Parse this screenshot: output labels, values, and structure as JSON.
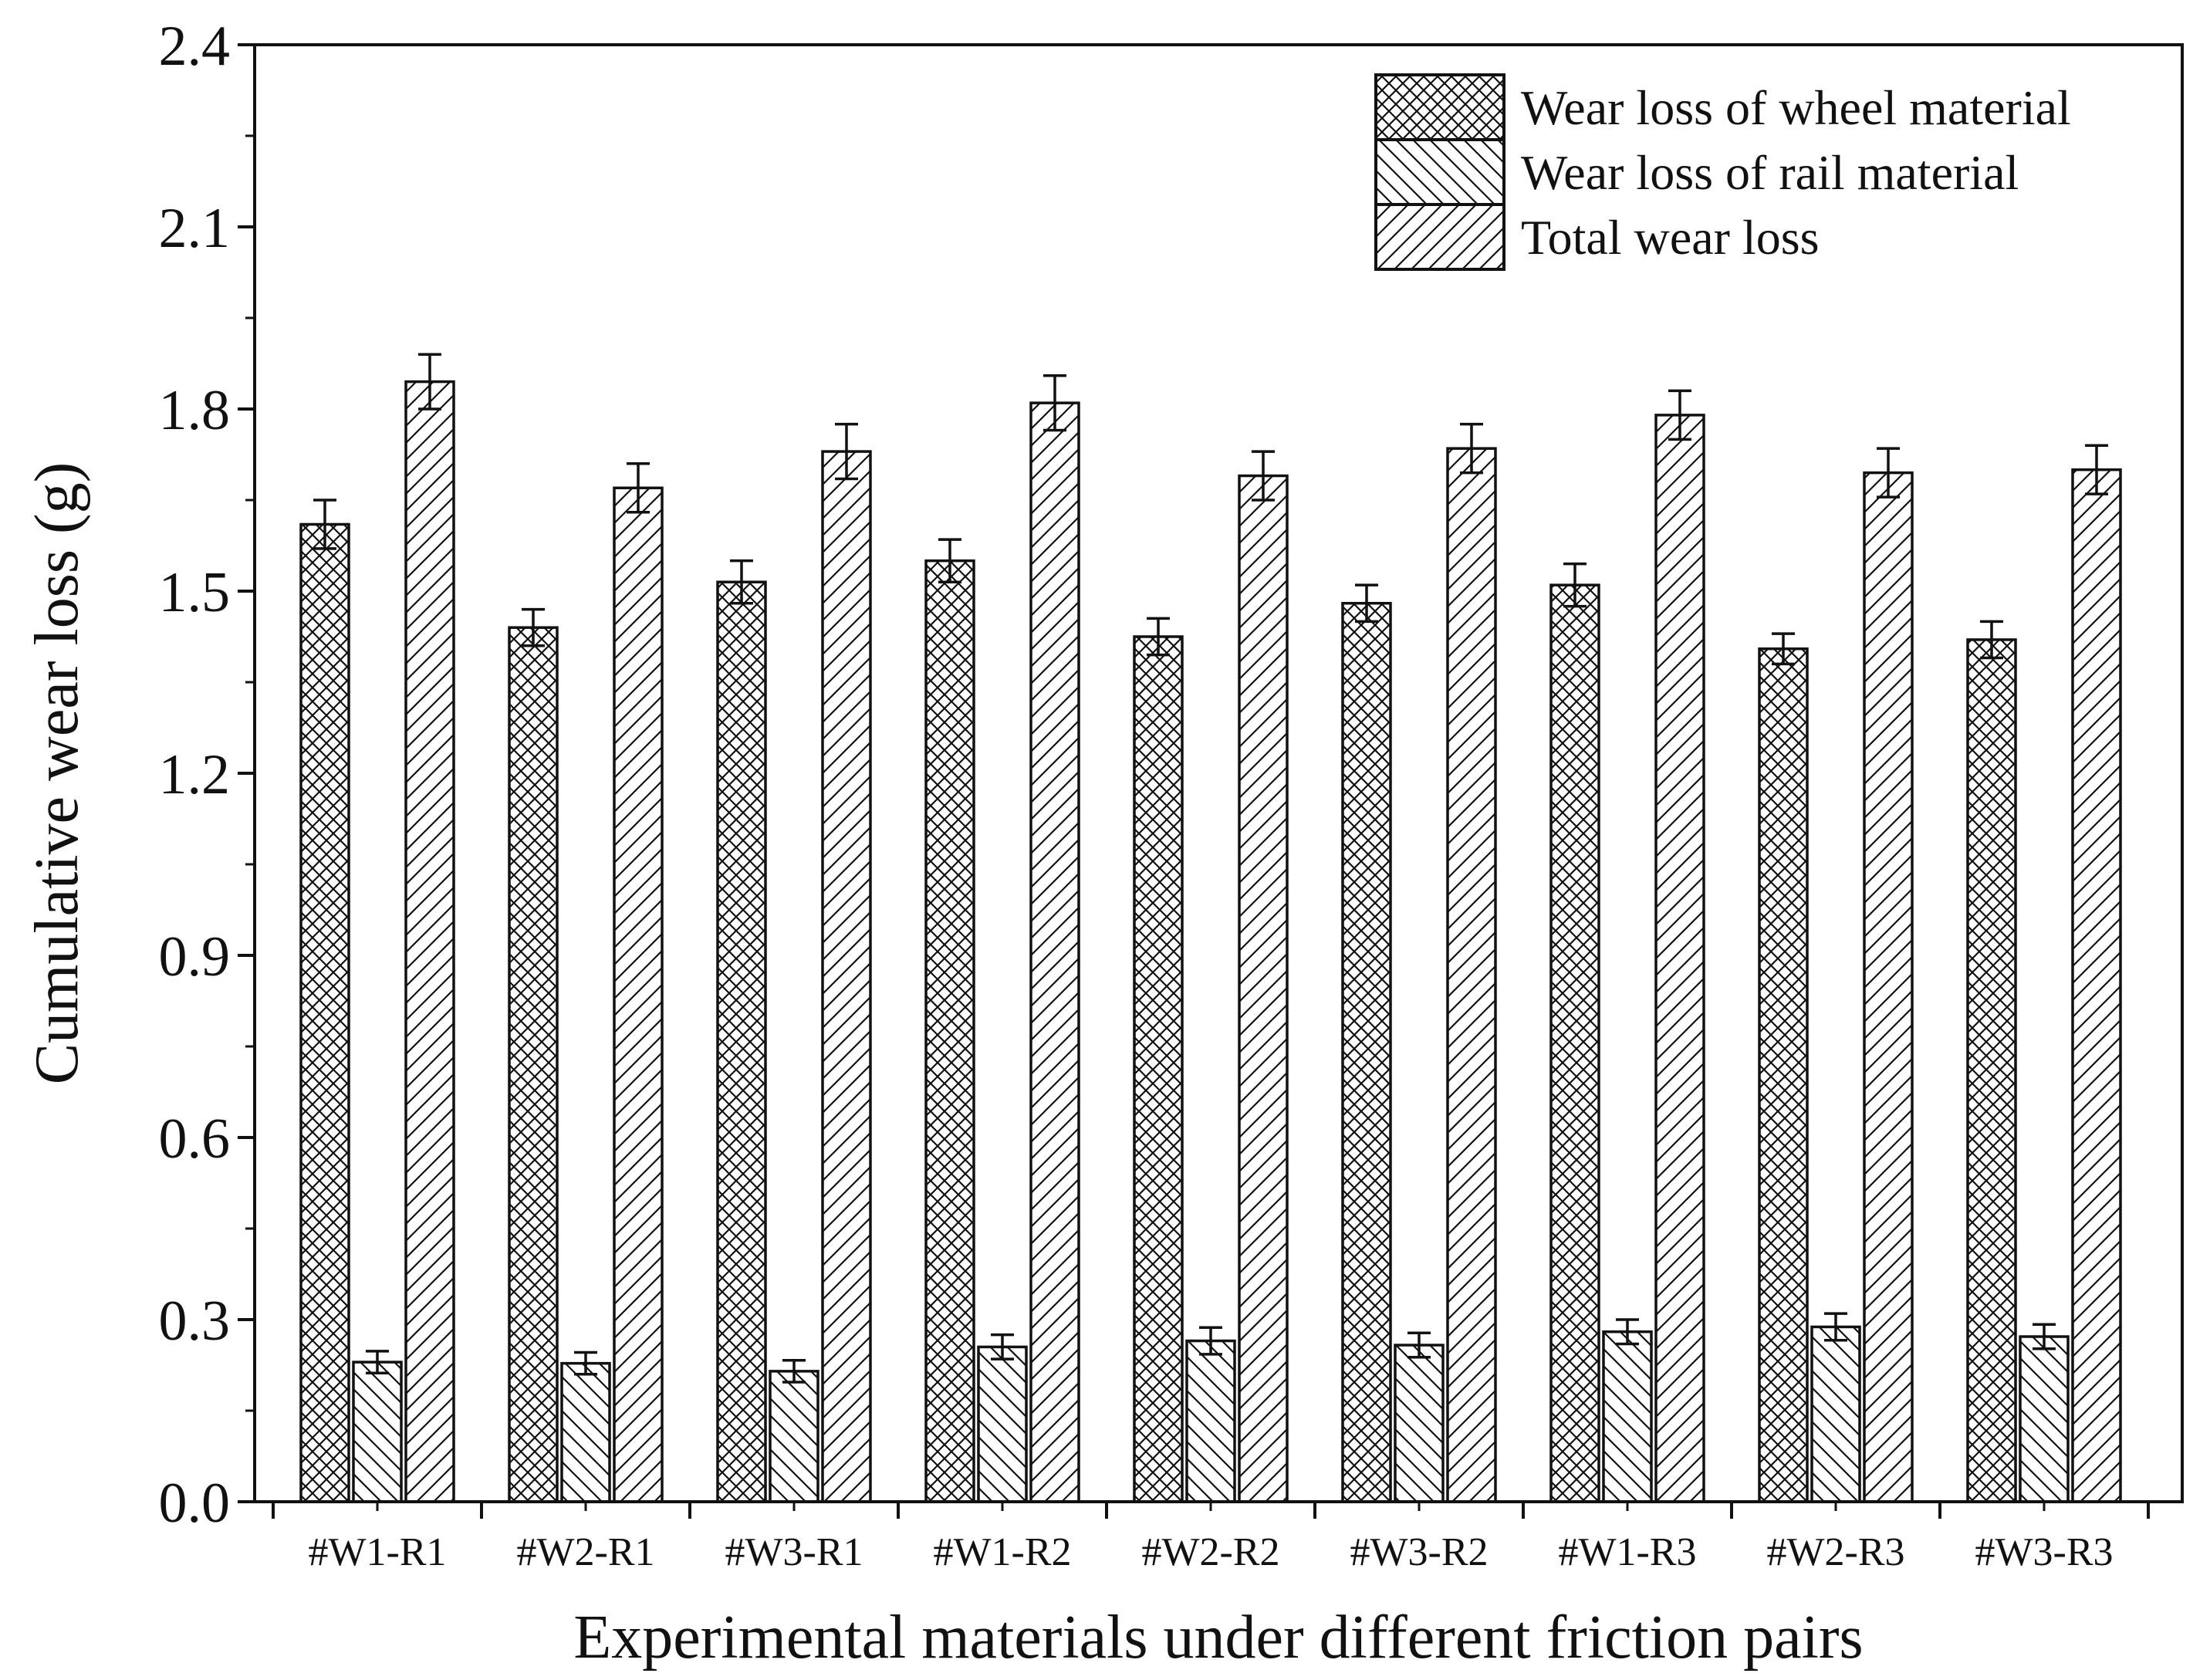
{
  "chart_data": {
    "type": "bar",
    "title": "",
    "xlabel": "Experimental materials under different friction pairs",
    "ylabel": "Cumulative wear loss (g)",
    "ylim": [
      0,
      2.4
    ],
    "yticks": [
      "0.0",
      "0.3",
      "0.6",
      "0.9",
      "1.2",
      "1.5",
      "1.8",
      "2.1",
      "2.4"
    ],
    "grid": false,
    "legend_position": "top-right",
    "categories": [
      "#W1-R1",
      "#W2-R1",
      "#W3-R1",
      "#W1-R2",
      "#W2-R2",
      "#W3-R2",
      "#W1-R3",
      "#W2-R3",
      "#W3-R3"
    ],
    "series": [
      {
        "name": "Wear loss of wheel material",
        "pattern": "crosshatch",
        "values": [
          1.61,
          1.44,
          1.515,
          1.55,
          1.425,
          1.48,
          1.51,
          1.405,
          1.42
        ],
        "errors": [
          0.04,
          0.03,
          0.035,
          0.035,
          0.03,
          0.03,
          0.035,
          0.025,
          0.03
        ]
      },
      {
        "name": "Wear loss of rail material",
        "pattern": "backslash",
        "values": [
          0.23,
          0.228,
          0.215,
          0.255,
          0.265,
          0.258,
          0.28,
          0.288,
          0.272
        ],
        "errors": [
          0.018,
          0.018,
          0.018,
          0.02,
          0.022,
          0.02,
          0.02,
          0.022,
          0.02
        ]
      },
      {
        "name": "Total wear loss",
        "pattern": "slash",
        "values": [
          1.845,
          1.67,
          1.73,
          1.81,
          1.69,
          1.735,
          1.79,
          1.695,
          1.7
        ],
        "errors": [
          0.045,
          0.04,
          0.045,
          0.045,
          0.04,
          0.04,
          0.04,
          0.04,
          0.04
        ]
      }
    ]
  },
  "colors": {
    "ink": "#111111",
    "background": "#ffffff"
  }
}
